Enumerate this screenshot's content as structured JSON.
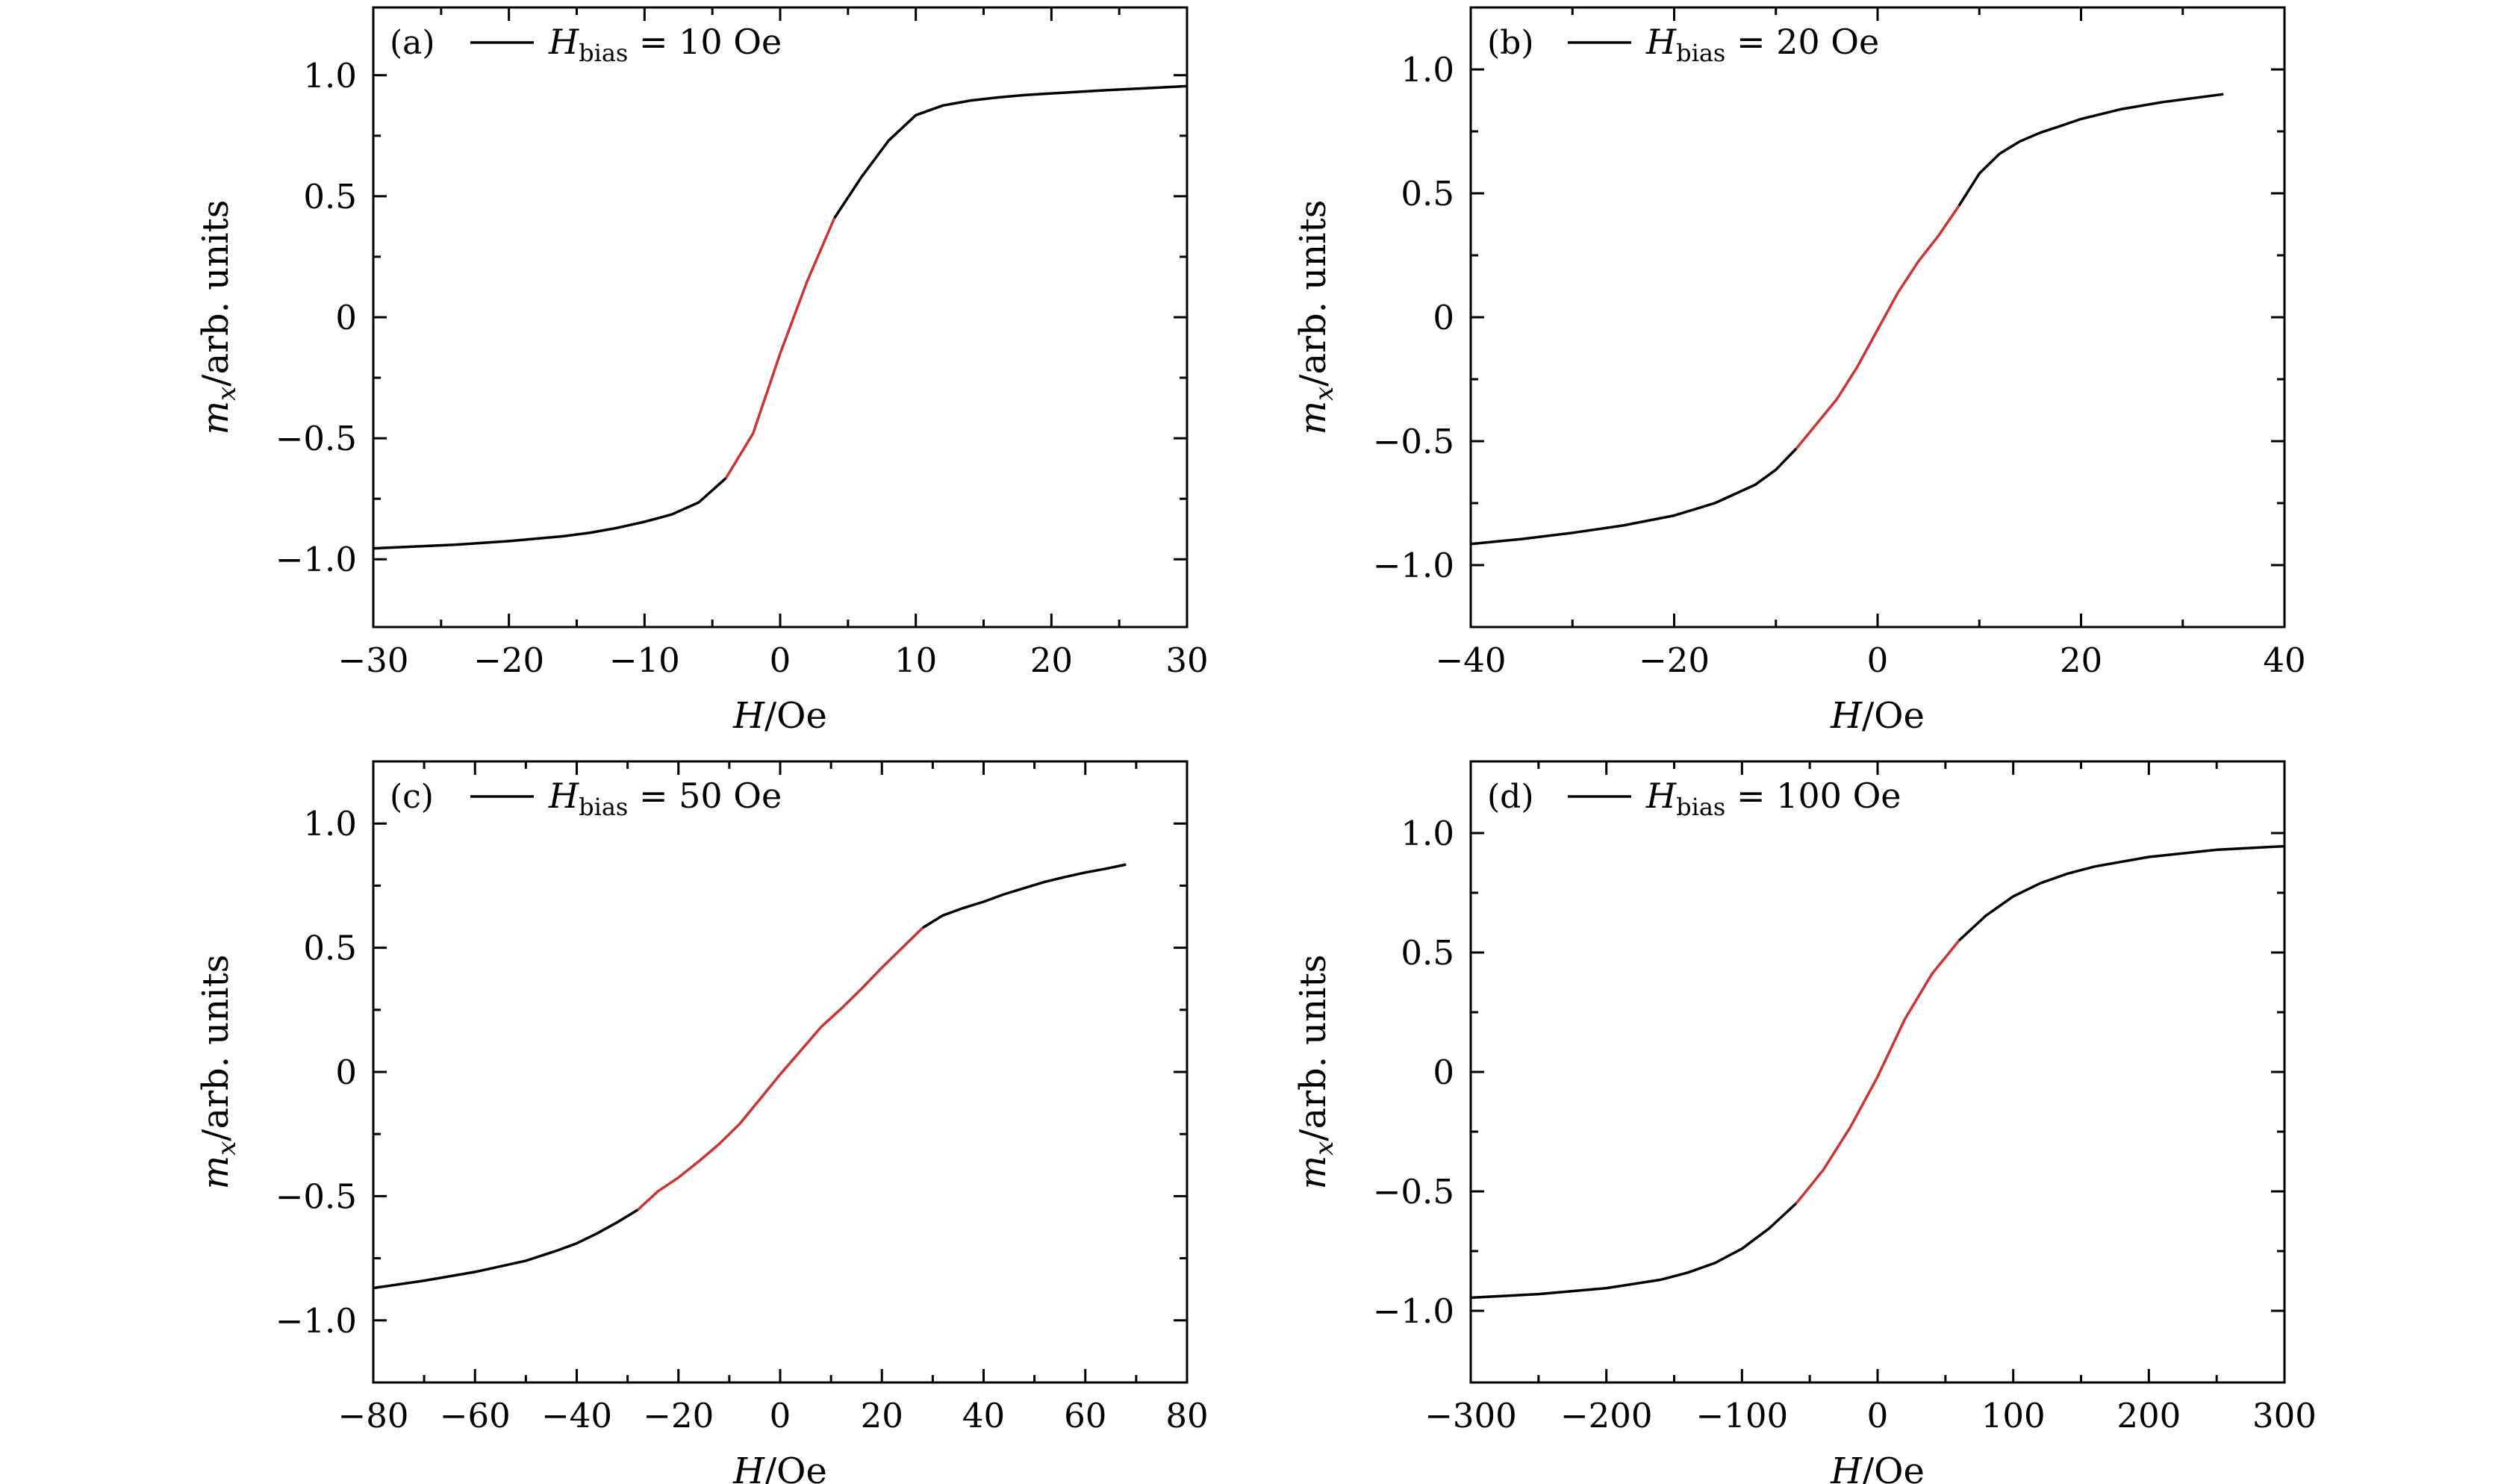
{
  "colors": {
    "outside_segment": "#000000",
    "linear_segment": "#cc3333",
    "background": "#ffffff"
  },
  "labels": {
    "x_var": "H",
    "x_unit": "/Oe",
    "y_var": "m",
    "y_sub": "x",
    "y_unit": "/arb. units",
    "legend_var": "H",
    "legend_sub": "bias",
    "legend_eq": " = "
  },
  "chart_data": [
    {
      "type": "line",
      "panel": "(a)",
      "legend_value": "10 Oe",
      "xlabel": "H/Oe",
      "ylabel": "m_x/arb. units",
      "xlim": [
        -30,
        30
      ],
      "ylim": [
        -1.28,
        1.28
      ],
      "xticks": [
        -30,
        -20,
        -10,
        0,
        10,
        20,
        30
      ],
      "xtick_labels": [
        "−30",
        "−20",
        "−10",
        "0",
        "10",
        "20",
        "30"
      ],
      "yticks": [
        -1.0,
        -0.5,
        0,
        0.5,
        1.0
      ],
      "ytick_labels": [
        "−1.0",
        "−0.5",
        "0",
        "0.5",
        "1.0"
      ],
      "series": [
        {
          "color": "#000000",
          "x": [
            -30,
            -24,
            -20,
            -16,
            -14,
            -12,
            -10,
            -8,
            -6,
            -4
          ],
          "y": [
            -0.955,
            -0.94,
            -0.925,
            -0.905,
            -0.89,
            -0.87,
            -0.845,
            -0.815,
            -0.765,
            -0.665
          ]
        },
        {
          "color": "#cc3333",
          "x": [
            -4,
            -2,
            0,
            2,
            4
          ],
          "y": [
            -0.665,
            -0.48,
            -0.15,
            0.15,
            0.41
          ]
        },
        {
          "color": "#000000",
          "x": [
            4,
            6,
            8,
            10,
            12,
            14,
            16,
            18,
            20,
            24,
            30
          ],
          "y": [
            0.41,
            0.58,
            0.73,
            0.835,
            0.875,
            0.895,
            0.908,
            0.918,
            0.925,
            0.938,
            0.955
          ]
        }
      ]
    },
    {
      "type": "line",
      "panel": "(b)",
      "legend_value": "20 Oe",
      "xlabel": "H/Oe",
      "ylabel": "m_x/arb. units",
      "xlim": [
        -40,
        40
      ],
      "ylim": [
        -1.25,
        1.25
      ],
      "xticks": [
        -40,
        -20,
        0,
        20,
        40
      ],
      "xtick_labels": [
        "−40",
        "−20",
        "0",
        "20",
        "40"
      ],
      "yticks": [
        -1.0,
        -0.5,
        0,
        0.5,
        1.0
      ],
      "ytick_labels": [
        "−1.0",
        "−0.5",
        "0",
        "0.5",
        "1.0"
      ],
      "series": [
        {
          "color": "#000000",
          "x": [
            -40,
            -35,
            -30,
            -25,
            -20,
            -16,
            -12,
            -10,
            -8
          ],
          "y": [
            -0.915,
            -0.895,
            -0.87,
            -0.84,
            -0.8,
            -0.75,
            -0.675,
            -0.615,
            -0.53
          ]
        },
        {
          "color": "#cc3333",
          "x": [
            -8,
            -6,
            -4,
            -2,
            0,
            2,
            4,
            6,
            8
          ],
          "y": [
            -0.53,
            -0.43,
            -0.33,
            -0.2,
            -0.05,
            0.1,
            0.225,
            0.33,
            0.45
          ]
        },
        {
          "color": "#000000",
          "x": [
            8,
            10,
            12,
            14,
            16,
            18,
            20,
            24,
            28,
            34
          ],
          "y": [
            0.45,
            0.58,
            0.66,
            0.71,
            0.745,
            0.772,
            0.8,
            0.84,
            0.868,
            0.9
          ]
        }
      ]
    },
    {
      "type": "line",
      "panel": "(c)",
      "legend_value": "50 Oe",
      "xlabel": "H/Oe",
      "ylabel": "m_x/arb. units",
      "xlim": [
        -80,
        80
      ],
      "ylim": [
        -1.25,
        1.25
      ],
      "xticks": [
        -80,
        -60,
        -40,
        -20,
        0,
        20,
        40,
        60,
        80
      ],
      "xtick_labels": [
        "−80",
        "−60",
        "−40",
        "−20",
        "0",
        "20",
        "40",
        "60",
        "80"
      ],
      "yticks": [
        -1.0,
        -0.5,
        0,
        0.5,
        1.0
      ],
      "ytick_labels": [
        "−1.0",
        "−0.5",
        "0",
        "0.5",
        "1.0"
      ],
      "series": [
        {
          "color": "#000000",
          "x": [
            -80,
            -70,
            -60,
            -50,
            -44,
            -40,
            -36,
            -32,
            -28
          ],
          "y": [
            -0.87,
            -0.84,
            -0.805,
            -0.76,
            -0.72,
            -0.69,
            -0.65,
            -0.605,
            -0.555
          ]
        },
        {
          "color": "#cc3333",
          "x": [
            -28,
            -24,
            -20,
            -16,
            -12,
            -8,
            -4,
            0,
            4,
            8,
            12,
            16,
            20,
            24,
            28
          ],
          "y": [
            -0.555,
            -0.48,
            -0.425,
            -0.36,
            -0.29,
            -0.21,
            -0.11,
            -0.01,
            0.085,
            0.18,
            0.255,
            0.335,
            0.42,
            0.5,
            0.58
          ]
        },
        {
          "color": "#000000",
          "x": [
            28,
            32,
            36,
            40,
            44,
            48,
            52,
            56,
            60,
            64,
            68
          ],
          "y": [
            0.58,
            0.63,
            0.66,
            0.685,
            0.715,
            0.74,
            0.765,
            0.785,
            0.803,
            0.818,
            0.835
          ]
        }
      ]
    },
    {
      "type": "line",
      "panel": "(d)",
      "legend_value": "100 Oe",
      "xlabel": "H/Oe",
      "ylabel": "m_x/arb. units",
      "xlim": [
        -300,
        300
      ],
      "ylim": [
        -1.3,
        1.3
      ],
      "xticks": [
        -300,
        -200,
        -100,
        0,
        100,
        200,
        300
      ],
      "xtick_labels": [
        "−300",
        "−200",
        "−100",
        "0",
        "100",
        "200",
        "300"
      ],
      "yticks": [
        -1.0,
        -0.5,
        0,
        0.5,
        1.0
      ],
      "ytick_labels": [
        "−1.0",
        "−0.5",
        "0",
        "0.5",
        "1.0"
      ],
      "series": [
        {
          "color": "#000000",
          "x": [
            -300,
            -250,
            -200,
            -160,
            -140,
            -120,
            -100,
            -80,
            -60
          ],
          "y": [
            -0.945,
            -0.93,
            -0.905,
            -0.87,
            -0.84,
            -0.8,
            -0.74,
            -0.655,
            -0.55
          ]
        },
        {
          "color": "#cc3333",
          "x": [
            -60,
            -40,
            -20,
            0,
            20,
            40,
            60
          ],
          "y": [
            -0.55,
            -0.41,
            -0.23,
            -0.02,
            0.22,
            0.41,
            0.55
          ]
        },
        {
          "color": "#000000",
          "x": [
            60,
            80,
            100,
            120,
            140,
            160,
            200,
            250,
            300
          ],
          "y": [
            0.55,
            0.655,
            0.735,
            0.79,
            0.83,
            0.86,
            0.9,
            0.93,
            0.945
          ]
        }
      ]
    }
  ]
}
